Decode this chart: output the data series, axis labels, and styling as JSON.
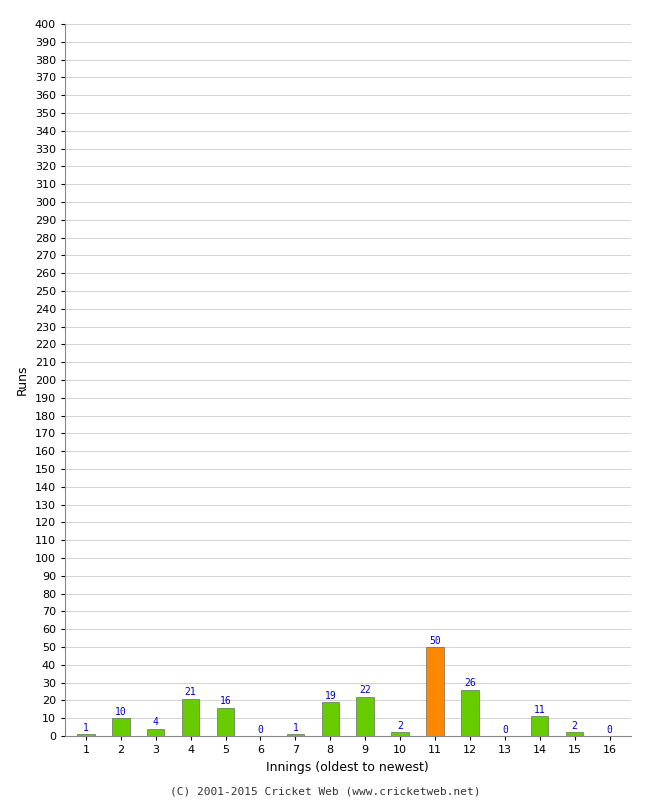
{
  "innings": [
    1,
    2,
    3,
    4,
    5,
    6,
    7,
    8,
    9,
    10,
    11,
    12,
    13,
    14,
    15,
    16
  ],
  "runs": [
    1,
    10,
    4,
    21,
    16,
    0,
    1,
    19,
    22,
    2,
    50,
    26,
    0,
    11,
    2,
    0
  ],
  "bar_colors": [
    "#66cc00",
    "#66cc00",
    "#66cc00",
    "#66cc00",
    "#66cc00",
    "#66cc00",
    "#66cc00",
    "#66cc00",
    "#66cc00",
    "#66cc00",
    "#ff8800",
    "#66cc00",
    "#66cc00",
    "#66cc00",
    "#66cc00",
    "#66cc00"
  ],
  "xlabel": "Innings (oldest to newest)",
  "ylabel": "Runs",
  "yticks": [
    0,
    10,
    20,
    30,
    40,
    50,
    60,
    70,
    80,
    90,
    100,
    110,
    120,
    130,
    140,
    150,
    160,
    170,
    180,
    190,
    200,
    210,
    220,
    230,
    240,
    250,
    260,
    270,
    280,
    290,
    300,
    310,
    320,
    330,
    340,
    350,
    360,
    370,
    380,
    390,
    400
  ],
  "ylim": [
    0,
    400
  ],
  "footer": "(C) 2001-2015 Cricket Web (www.cricketweb.net)",
  "label_color": "#0000cc",
  "grid_color": "#cccccc",
  "background_color": "#ffffff",
  "bar_edge_color": "#555555",
  "label_fontsize": 7,
  "axis_tick_fontsize": 8,
  "axis_label_fontsize": 9,
  "footer_fontsize": 8,
  "bar_width": 0.5
}
